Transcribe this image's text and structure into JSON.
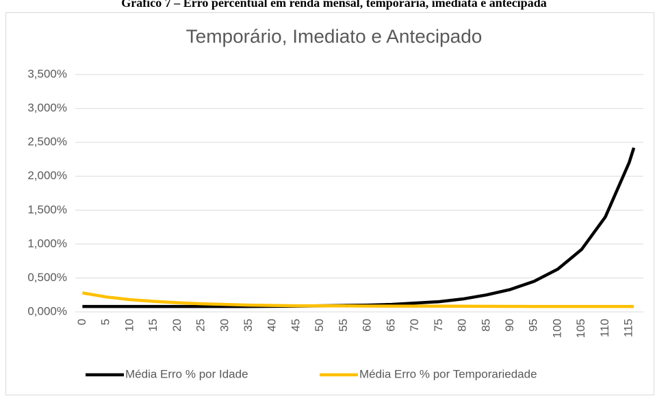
{
  "caption": "Gráfico 7 – Erro percentual em renda mensal, temporária, imediata e antecipada",
  "chart_data": {
    "type": "line",
    "title": "Temporário, Imediato e Antecipado",
    "x": [
      0,
      5,
      10,
      15,
      20,
      25,
      30,
      35,
      40,
      45,
      50,
      55,
      60,
      65,
      70,
      75,
      80,
      85,
      90,
      95,
      100,
      105,
      110,
      115,
      116
    ],
    "xlim": [
      -1.5,
      118
    ],
    "xticks": [
      0,
      5,
      10,
      15,
      20,
      25,
      30,
      35,
      40,
      45,
      50,
      55,
      60,
      65,
      70,
      75,
      80,
      85,
      90,
      95,
      100,
      105,
      110,
      115
    ],
    "ylim": [
      0,
      3.5
    ],
    "yticks": [
      {
        "value": 0,
        "label": "0,000%"
      },
      {
        "value": 0.5,
        "label": "0,500%"
      },
      {
        "value": 1,
        "label": "1,000%"
      },
      {
        "value": 1.5,
        "label": "1,500%"
      },
      {
        "value": 2,
        "label": "2,000%"
      },
      {
        "value": 2.5,
        "label": "2,500%"
      },
      {
        "value": 3,
        "label": "3,000%"
      },
      {
        "value": 3.5,
        "label": "3,500%"
      }
    ],
    "grid": true,
    "legend": "bottom",
    "series": [
      {
        "name": "Média Erro % por Idade",
        "color": "#000000",
        "values": [
          0.08,
          0.08,
          0.08,
          0.08,
          0.08,
          0.08,
          0.08,
          0.08,
          0.082,
          0.085,
          0.09,
          0.095,
          0.1,
          0.11,
          0.13,
          0.15,
          0.19,
          0.25,
          0.33,
          0.45,
          0.63,
          0.92,
          1.4,
          2.2,
          2.42
        ]
      },
      {
        "name": "Média Erro % por Temporariedade",
        "color": "#ffc000",
        "values": [
          0.28,
          0.22,
          0.18,
          0.155,
          0.135,
          0.12,
          0.11,
          0.1,
          0.095,
          0.09,
          0.09,
          0.088,
          0.086,
          0.085,
          0.085,
          0.084,
          0.083,
          0.082,
          0.081,
          0.08,
          0.08,
          0.08,
          0.08,
          0.08,
          0.08
        ]
      }
    ]
  }
}
